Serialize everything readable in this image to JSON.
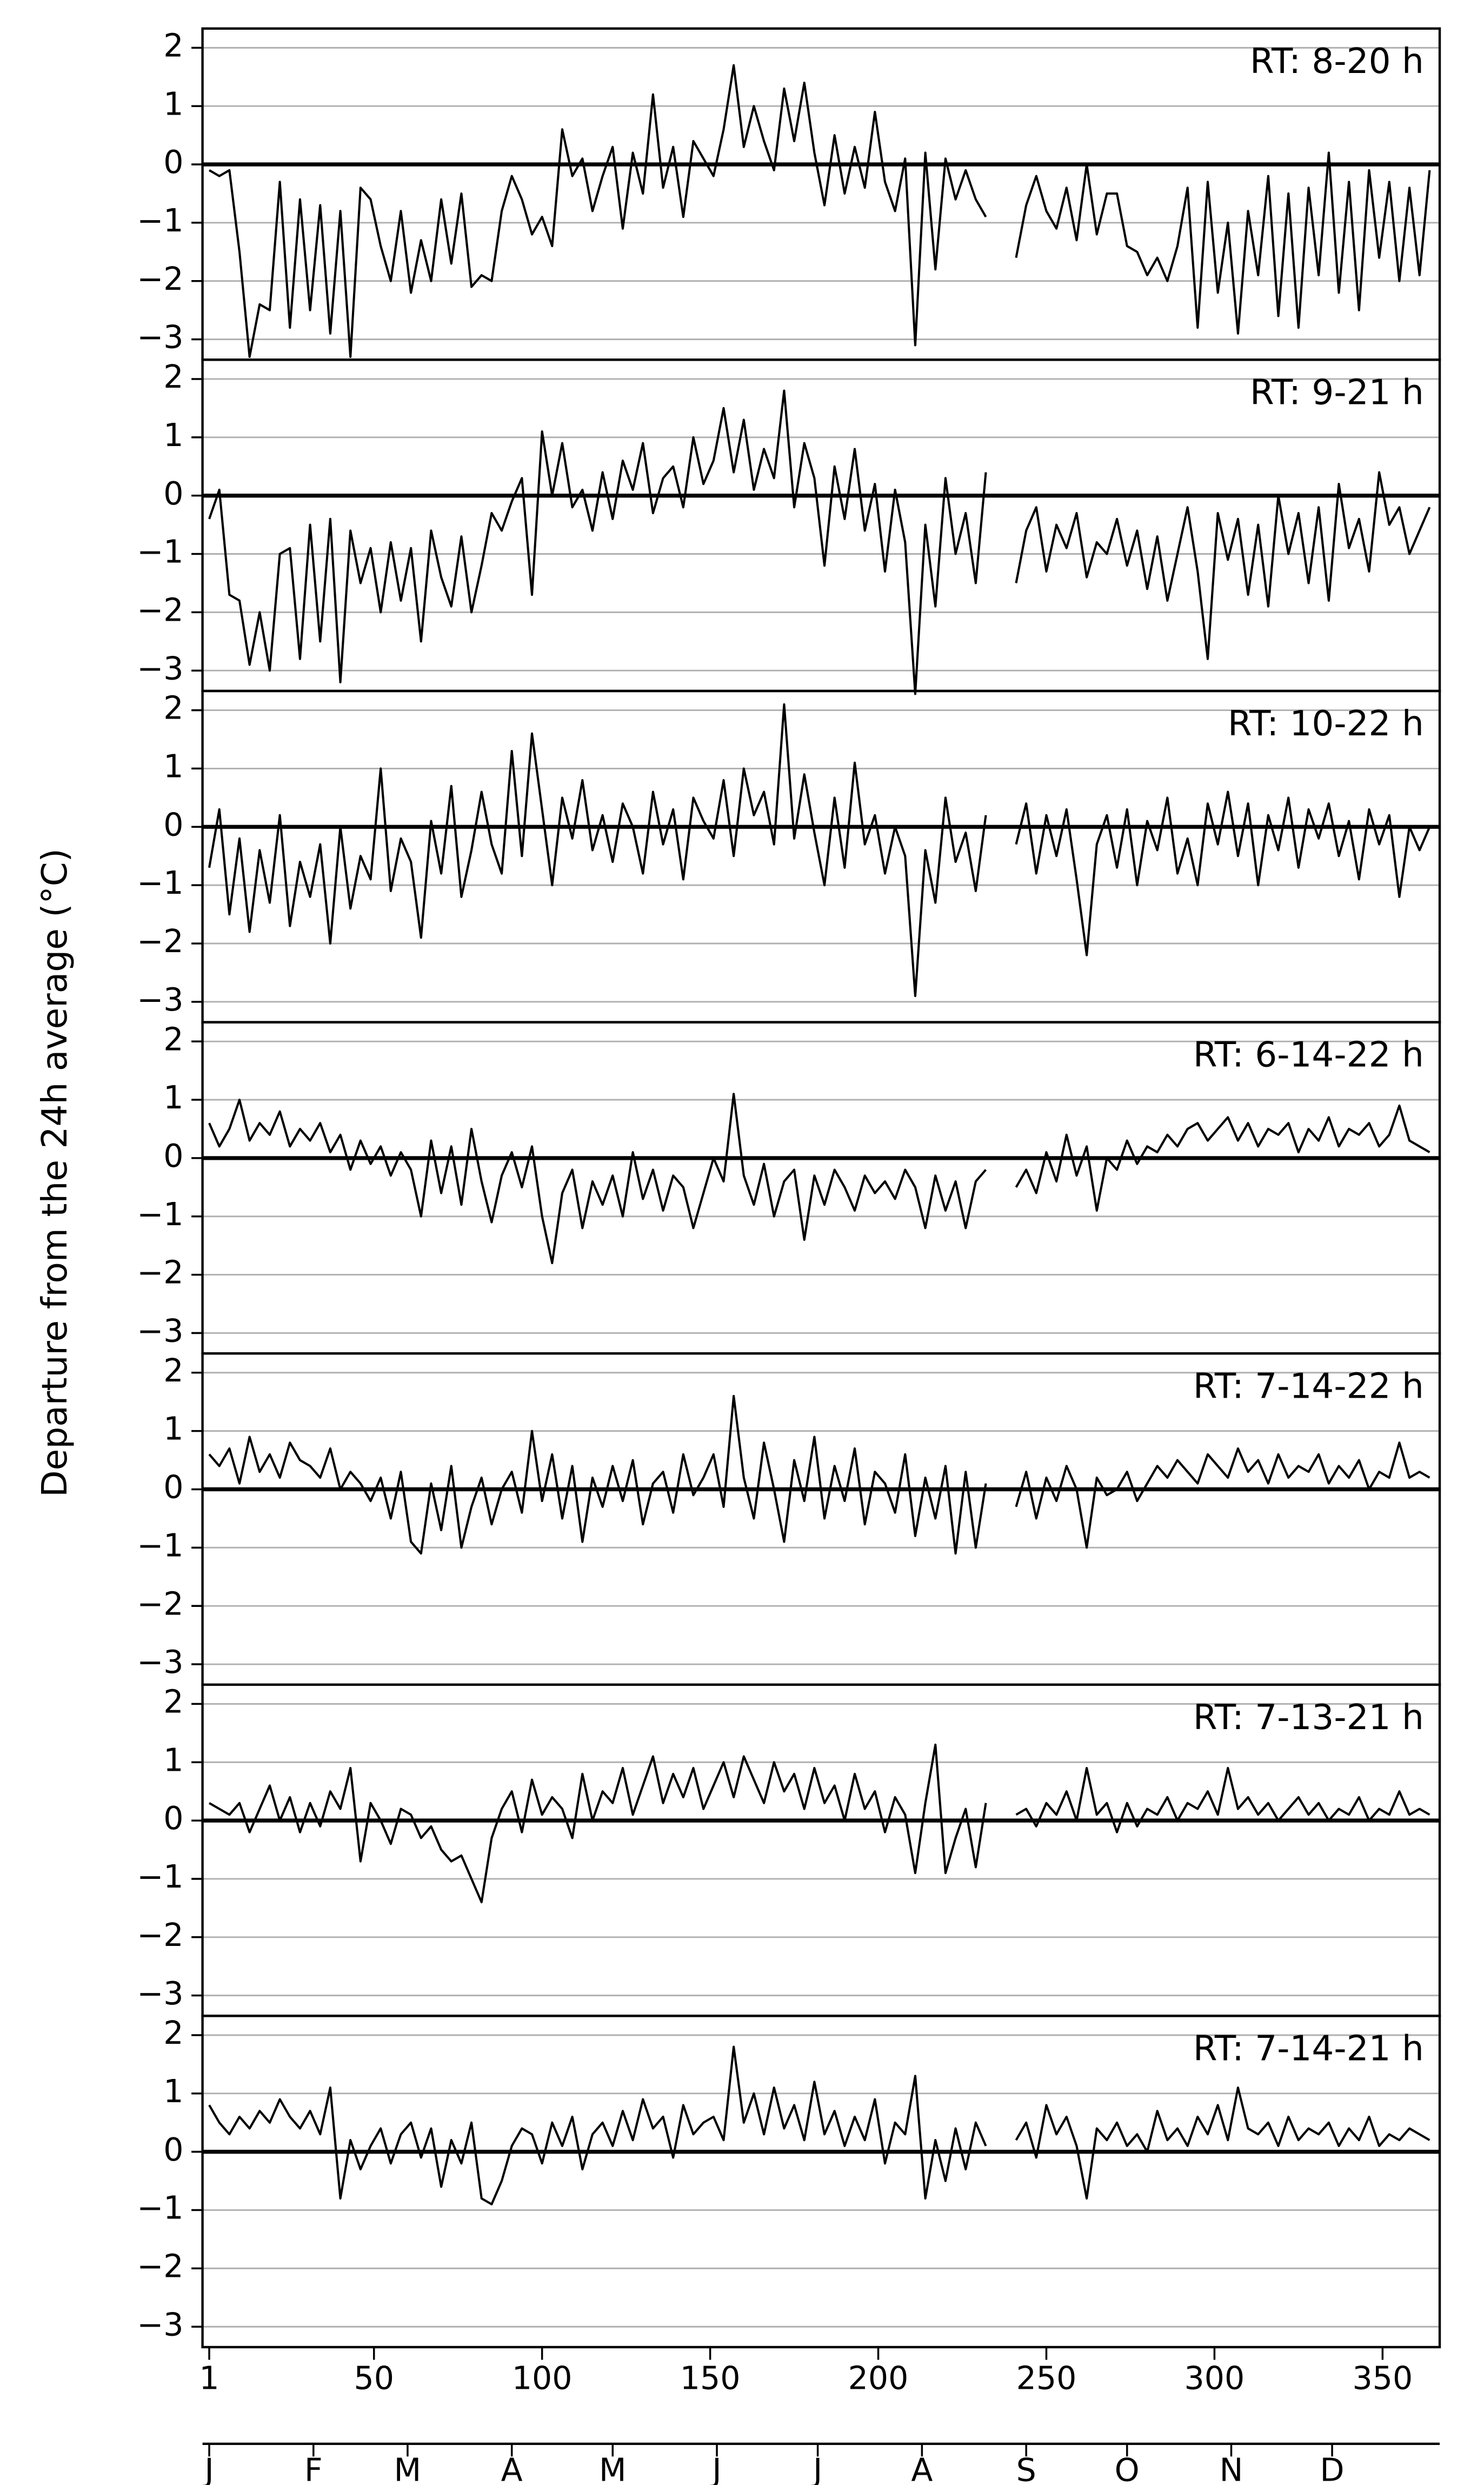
{
  "chart_data": {
    "type": "line",
    "y_label": "Departure from the 24h average (°C)",
    "x": [
      1,
      4,
      7,
      10,
      13,
      16,
      19,
      22,
      25,
      28,
      31,
      34,
      37,
      40,
      43,
      46,
      49,
      52,
      55,
      58,
      61,
      64,
      67,
      70,
      73,
      76,
      79,
      82,
      85,
      88,
      91,
      94,
      97,
      100,
      103,
      106,
      109,
      112,
      115,
      118,
      121,
      124,
      127,
      130,
      133,
      136,
      139,
      142,
      145,
      148,
      151,
      154,
      157,
      160,
      163,
      166,
      169,
      172,
      175,
      178,
      181,
      184,
      187,
      190,
      193,
      196,
      199,
      202,
      205,
      208,
      211,
      214,
      217,
      220,
      223,
      226,
      229,
      232,
      235,
      238,
      241,
      244,
      247,
      250,
      253,
      256,
      259,
      262,
      265,
      268,
      271,
      274,
      277,
      280,
      283,
      286,
      289,
      292,
      295,
      298,
      301,
      304,
      307,
      310,
      313,
      316,
      319,
      322,
      325,
      328,
      331,
      334,
      337,
      340,
      343,
      346,
      349,
      352,
      355,
      358,
      361,
      364
    ],
    "xlim": [
      -1,
      367
    ],
    "xticks": [
      1,
      50,
      100,
      150,
      200,
      250,
      300,
      350
    ],
    "ylim": [
      -3.35,
      2.33
    ],
    "yticks": [
      {
        "value": -3,
        "label": "−3"
      },
      {
        "value": -2,
        "label": "−2"
      },
      {
        "value": -1,
        "label": "−1"
      },
      0,
      1,
      2
    ],
    "grid": true,
    "hline": 0,
    "months": {
      "labels": [
        "J",
        "F",
        "M",
        "A",
        "M",
        "J",
        "J",
        "A",
        "S",
        "O",
        "N",
        "D"
      ],
      "x": [
        1,
        32,
        60,
        91,
        121,
        152,
        182,
        213,
        244,
        274,
        305,
        335
      ]
    },
    "series": [
      {
        "name": "RT: 8-20 h",
        "color": "#000000",
        "values": [
          -0.1,
          -0.2,
          -0.1,
          -1.5,
          -3.3,
          -2.4,
          -2.5,
          -0.3,
          -2.8,
          -0.6,
          -2.5,
          -0.7,
          -2.9,
          -0.8,
          -3.3,
          -0.4,
          -0.6,
          -1.4,
          -2.0,
          -0.8,
          -2.2,
          -1.3,
          -2.0,
          -0.6,
          -1.7,
          -0.5,
          -2.1,
          -1.9,
          -2.0,
          -0.8,
          -0.2,
          -0.6,
          -1.2,
          -0.9,
          -1.4,
          0.6,
          -0.2,
          0.1,
          -0.8,
          -0.2,
          0.3,
          -1.1,
          0.2,
          -0.5,
          1.2,
          -0.4,
          0.3,
          -0.9,
          0.4,
          0.1,
          -0.2,
          0.6,
          1.7,
          0.3,
          1.0,
          0.4,
          -0.1,
          1.3,
          0.4,
          1.4,
          0.2,
          -0.7,
          0.5,
          -0.5,
          0.3,
          -0.4,
          0.9,
          -0.3,
          -0.8,
          0.1,
          -3.1,
          0.2,
          -1.8,
          0.1,
          -0.6,
          -0.1,
          -0.6,
          -0.9,
          null,
          null,
          -1.6,
          -0.7,
          -0.2,
          -0.8,
          -1.1,
          -0.4,
          -1.3,
          0.0,
          -1.2,
          -0.5,
          -0.5,
          -1.4,
          -1.5,
          -1.9,
          -1.6,
          -2.0,
          -1.4,
          -0.4,
          -2.8,
          -0.3,
          -2.2,
          -1.0,
          -2.9,
          -0.8,
          -1.9,
          -0.2,
          -2.6,
          -0.5,
          -2.8,
          -0.4,
          -1.9,
          0.2,
          -2.2,
          -0.3,
          -2.5,
          -0.1,
          -1.6,
          -0.3,
          -2.0,
          -0.4,
          -1.9,
          -0.1
        ]
      },
      {
        "name": "RT: 9-21 h",
        "color": "#000000",
        "values": [
          -0.4,
          0.1,
          -1.7,
          -1.8,
          -2.9,
          -2.0,
          -3.0,
          -1.0,
          -0.9,
          -2.8,
          -0.5,
          -2.5,
          -0.4,
          -3.2,
          -0.6,
          -1.5,
          -0.9,
          -2.0,
          -0.8,
          -1.8,
          -0.9,
          -2.5,
          -0.6,
          -1.4,
          -1.9,
          -0.7,
          -2.0,
          -1.2,
          -0.3,
          -0.6,
          -0.1,
          0.3,
          -1.7,
          1.1,
          0.0,
          0.9,
          -0.2,
          0.1,
          -0.6,
          0.4,
          -0.4,
          0.6,
          0.1,
          0.9,
          -0.3,
          0.3,
          0.5,
          -0.2,
          1.0,
          0.2,
          0.6,
          1.5,
          0.4,
          1.3,
          0.1,
          0.8,
          0.3,
          1.8,
          -0.2,
          0.9,
          0.3,
          -1.2,
          0.5,
          -0.4,
          0.8,
          -0.6,
          0.2,
          -1.3,
          0.1,
          -0.8,
          -3.4,
          -0.5,
          -1.9,
          0.3,
          -1.0,
          -0.3,
          -1.5,
          0.4,
          null,
          null,
          -1.5,
          -0.6,
          -0.2,
          -1.3,
          -0.5,
          -0.9,
          -0.3,
          -1.4,
          -0.8,
          -1.0,
          -0.4,
          -1.2,
          -0.6,
          -1.6,
          -0.7,
          -1.8,
          -1.0,
          -0.2,
          -1.3,
          -2.8,
          -0.3,
          -1.1,
          -0.4,
          -1.7,
          -0.5,
          -1.9,
          0.0,
          -1.0,
          -0.3,
          -1.5,
          -0.2,
          -1.8,
          0.2,
          -0.9,
          -0.4,
          -1.3,
          0.4,
          -0.5,
          -0.2,
          -1.0,
          -0.6,
          -0.2
        ]
      },
      {
        "name": "RT: 10-22 h",
        "color": "#000000",
        "values": [
          -0.7,
          0.3,
          -1.5,
          -0.2,
          -1.8,
          -0.4,
          -1.3,
          0.2,
          -1.7,
          -0.6,
          -1.2,
          -0.3,
          -2.0,
          0.0,
          -1.4,
          -0.5,
          -0.9,
          1.0,
          -1.1,
          -0.2,
          -0.6,
          -1.9,
          0.1,
          -0.8,
          0.7,
          -1.2,
          -0.4,
          0.6,
          -0.3,
          -0.8,
          1.3,
          -0.5,
          1.6,
          0.3,
          -1.0,
          0.5,
          -0.2,
          0.8,
          -0.4,
          0.2,
          -0.6,
          0.4,
          0.0,
          -0.8,
          0.6,
          -0.3,
          0.3,
          -0.9,
          0.5,
          0.1,
          -0.2,
          0.8,
          -0.5,
          1.0,
          0.2,
          0.6,
          -0.3,
          2.1,
          -0.2,
          0.9,
          -0.1,
          -1.0,
          0.5,
          -0.7,
          1.1,
          -0.3,
          0.2,
          -0.8,
          0.0,
          -0.5,
          -2.9,
          -0.4,
          -1.3,
          0.5,
          -0.6,
          -0.1,
          -1.1,
          0.2,
          null,
          null,
          -0.3,
          0.4,
          -0.8,
          0.2,
          -0.5,
          0.3,
          -0.9,
          -2.2,
          -0.3,
          0.2,
          -0.7,
          0.3,
          -1.0,
          0.1,
          -0.4,
          0.5,
          -0.8,
          -0.2,
          -1.0,
          0.4,
          -0.3,
          0.6,
          -0.5,
          0.4,
          -1.0,
          0.2,
          -0.4,
          0.5,
          -0.7,
          0.3,
          -0.2,
          0.4,
          -0.5,
          0.1,
          -0.9,
          0.3,
          -0.3,
          0.2,
          -1.2,
          0.0,
          -0.4,
          0.0
        ]
      },
      {
        "name": "RT: 6-14-22 h",
        "color": "#000000",
        "values": [
          0.6,
          0.2,
          0.5,
          1.0,
          0.3,
          0.6,
          0.4,
          0.8,
          0.2,
          0.5,
          0.3,
          0.6,
          0.1,
          0.4,
          -0.2,
          0.3,
          -0.1,
          0.2,
          -0.3,
          0.1,
          -0.2,
          -1.0,
          0.3,
          -0.6,
          0.2,
          -0.8,
          0.5,
          -0.4,
          -1.1,
          -0.3,
          0.1,
          -0.5,
          0.2,
          -1.0,
          -1.8,
          -0.6,
          -0.2,
          -1.2,
          -0.4,
          -0.8,
          -0.3,
          -1.0,
          0.1,
          -0.7,
          -0.2,
          -0.9,
          -0.3,
          -0.5,
          -1.2,
          -0.6,
          0.0,
          -0.4,
          1.1,
          -0.3,
          -0.8,
          -0.1,
          -1.0,
          -0.4,
          -0.2,
          -1.4,
          -0.3,
          -0.8,
          -0.2,
          -0.5,
          -0.9,
          -0.3,
          -0.6,
          -0.4,
          -0.7,
          -0.2,
          -0.5,
          -1.2,
          -0.3,
          -0.9,
          -0.4,
          -1.2,
          -0.4,
          -0.2,
          null,
          null,
          -0.5,
          -0.2,
          -0.6,
          0.1,
          -0.4,
          0.4,
          -0.3,
          0.2,
          -0.9,
          0.0,
          -0.2,
          0.3,
          -0.1,
          0.2,
          0.1,
          0.4,
          0.2,
          0.5,
          0.6,
          0.3,
          0.5,
          0.7,
          0.3,
          0.6,
          0.2,
          0.5,
          0.4,
          0.6,
          0.1,
          0.5,
          0.3,
          0.7,
          0.2,
          0.5,
          0.4,
          0.6,
          0.2,
          0.4,
          0.9,
          0.3,
          0.2,
          0.1
        ]
      },
      {
        "name": "RT: 7-14-22 h",
        "color": "#000000",
        "values": [
          0.6,
          0.4,
          0.7,
          0.1,
          0.9,
          0.3,
          0.6,
          0.2,
          0.8,
          0.5,
          0.4,
          0.2,
          0.7,
          0.0,
          0.3,
          0.1,
          -0.2,
          0.2,
          -0.5,
          0.3,
          -0.9,
          -1.1,
          0.1,
          -0.7,
          0.4,
          -1.0,
          -0.3,
          0.2,
          -0.6,
          0.0,
          0.3,
          -0.4,
          1.0,
          -0.2,
          0.6,
          -0.5,
          0.4,
          -0.9,
          0.2,
          -0.3,
          0.4,
          -0.2,
          0.5,
          -0.6,
          0.1,
          0.3,
          -0.4,
          0.6,
          -0.1,
          0.2,
          0.6,
          -0.3,
          1.6,
          0.2,
          -0.5,
          0.8,
          0.0,
          -0.9,
          0.5,
          -0.2,
          0.9,
          -0.5,
          0.4,
          -0.2,
          0.7,
          -0.6,
          0.3,
          0.1,
          -0.4,
          0.6,
          -0.8,
          0.2,
          -0.5,
          0.4,
          -1.1,
          0.3,
          -1.0,
          0.1,
          null,
          null,
          -0.3,
          0.3,
          -0.5,
          0.2,
          -0.2,
          0.4,
          0.0,
          -1.0,
          0.2,
          -0.1,
          0.0,
          0.3,
          -0.2,
          0.1,
          0.4,
          0.2,
          0.5,
          0.3,
          0.1,
          0.6,
          0.4,
          0.2,
          0.7,
          0.3,
          0.5,
          0.1,
          0.6,
          0.2,
          0.4,
          0.3,
          0.6,
          0.1,
          0.4,
          0.2,
          0.5,
          0.0,
          0.3,
          0.2,
          0.8,
          0.2,
          0.3,
          0.2
        ]
      },
      {
        "name": "RT: 7-13-21 h",
        "color": "#000000",
        "values": [
          0.3,
          0.2,
          0.1,
          0.3,
          -0.2,
          0.2,
          0.6,
          0.0,
          0.4,
          -0.2,
          0.3,
          -0.1,
          0.5,
          0.2,
          0.9,
          -0.7,
          0.3,
          0.0,
          -0.4,
          0.2,
          0.1,
          -0.3,
          -0.1,
          -0.5,
          -0.7,
          -0.6,
          -1.0,
          -1.4,
          -0.3,
          0.2,
          0.5,
          -0.2,
          0.7,
          0.1,
          0.4,
          0.2,
          -0.3,
          0.8,
          0.0,
          0.5,
          0.3,
          0.9,
          0.1,
          0.6,
          1.1,
          0.3,
          0.8,
          0.4,
          0.9,
          0.2,
          0.6,
          1.0,
          0.4,
          1.1,
          0.7,
          0.3,
          1.0,
          0.5,
          0.8,
          0.2,
          0.9,
          0.3,
          0.6,
          0.0,
          0.8,
          0.2,
          0.5,
          -0.2,
          0.4,
          0.1,
          -0.9,
          0.3,
          1.3,
          -0.9,
          -0.3,
          0.2,
          -0.8,
          0.3,
          null,
          null,
          0.1,
          0.2,
          -0.1,
          0.3,
          0.1,
          0.5,
          0.0,
          0.9,
          0.1,
          0.3,
          -0.2,
          0.3,
          -0.1,
          0.2,
          0.1,
          0.4,
          0.0,
          0.3,
          0.2,
          0.5,
          0.1,
          0.9,
          0.2,
          0.4,
          0.1,
          0.3,
          0.0,
          0.2,
          0.4,
          0.1,
          0.3,
          0.0,
          0.2,
          0.1,
          0.4,
          0.0,
          0.2,
          0.1,
          0.5,
          0.1,
          0.2,
          0.1
        ]
      },
      {
        "name": "RT: 7-14-21 h",
        "color": "#000000",
        "values": [
          0.8,
          0.5,
          0.3,
          0.6,
          0.4,
          0.7,
          0.5,
          0.9,
          0.6,
          0.4,
          0.7,
          0.3,
          1.1,
          -0.8,
          0.2,
          -0.3,
          0.1,
          0.4,
          -0.2,
          0.3,
          0.5,
          -0.1,
          0.4,
          -0.6,
          0.2,
          -0.2,
          0.5,
          -0.8,
          -0.9,
          -0.5,
          0.1,
          0.4,
          0.3,
          -0.2,
          0.5,
          0.1,
          0.6,
          -0.3,
          0.3,
          0.5,
          0.1,
          0.7,
          0.2,
          0.9,
          0.4,
          0.6,
          -0.1,
          0.8,
          0.3,
          0.5,
          0.6,
          0.2,
          1.8,
          0.5,
          1.0,
          0.3,
          1.1,
          0.4,
          0.8,
          0.2,
          1.2,
          0.3,
          0.7,
          0.1,
          0.6,
          0.2,
          0.9,
          -0.2,
          0.5,
          0.3,
          1.3,
          -0.8,
          0.2,
          -0.5,
          0.4,
          -0.3,
          0.5,
          0.1,
          null,
          null,
          0.2,
          0.5,
          -0.1,
          0.8,
          0.3,
          0.6,
          0.1,
          -0.8,
          0.4,
          0.2,
          0.5,
          0.1,
          0.3,
          0.0,
          0.7,
          0.2,
          0.4,
          0.1,
          0.6,
          0.3,
          0.8,
          0.2,
          1.1,
          0.4,
          0.3,
          0.5,
          0.1,
          0.6,
          0.2,
          0.4,
          0.3,
          0.5,
          0.1,
          0.4,
          0.2,
          0.6,
          0.1,
          0.3,
          0.2,
          0.4,
          0.3,
          0.2
        ]
      }
    ]
  }
}
